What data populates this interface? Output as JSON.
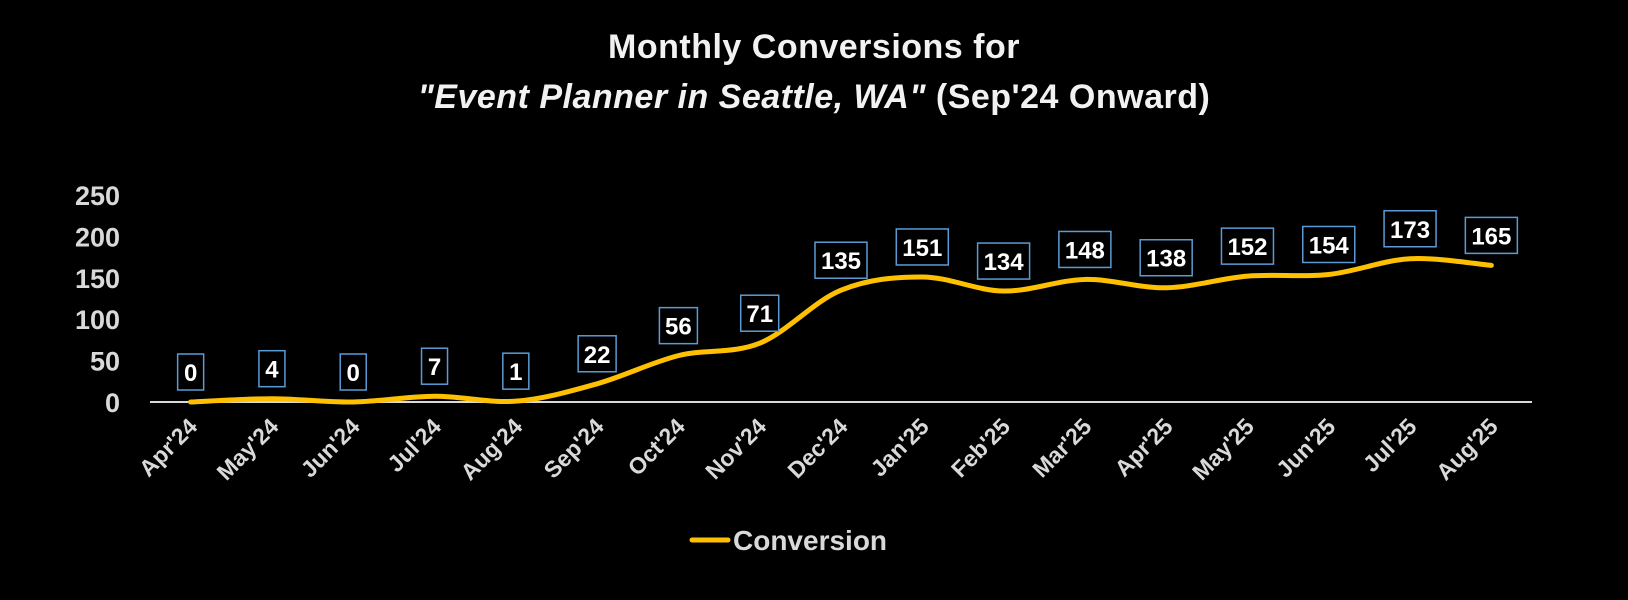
{
  "chart_data": {
    "type": "line",
    "title_line1": "Monthly Conversions for",
    "title_line2_italic": "\"Event Planner in Seattle, WA\"",
    "title_line2_rest": " (Sep'24 Onward)",
    "categories": [
      "Apr'24",
      "May'24",
      "Jun'24",
      "Jul'24",
      "Aug'24",
      "Sep'24",
      "Oct'24",
      "Nov'24",
      "Dec'24",
      "Jan'25",
      "Feb'25",
      "Mar'25",
      "Apr'25",
      "May'25",
      "Jun'25",
      "Jul'25",
      "Aug'25"
    ],
    "series": [
      {
        "name": "Conversion",
        "values": [
          0,
          4,
          0,
          7,
          1,
          22,
          56,
          71,
          135,
          151,
          134,
          148,
          138,
          152,
          154,
          173,
          165
        ],
        "color": "#FFC000"
      }
    ],
    "ylim": [
      0,
      250
    ],
    "yticks": [
      0,
      50,
      100,
      150,
      200,
      250
    ],
    "grid": false,
    "legend": "bottom",
    "data_label_border_color": "#5B9BD5",
    "background": "#000000"
  }
}
